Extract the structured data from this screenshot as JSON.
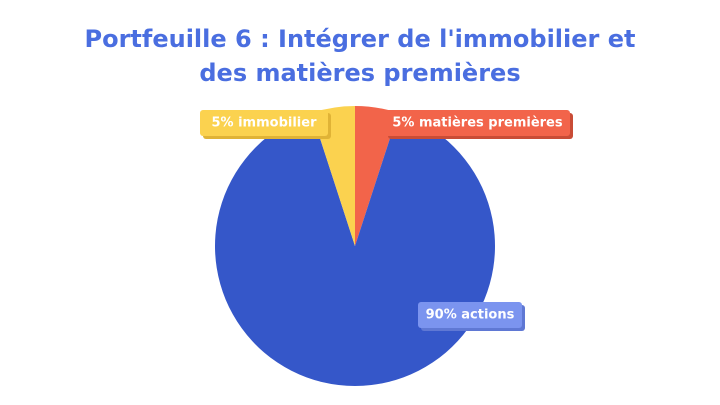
{
  "chart_data": {
    "type": "pie",
    "title": "Portfeuille 6 : Intégrer de l'immobilier et des matières premières",
    "values": [
      5,
      90,
      5
    ],
    "value_labels": [
      "5% matières premières",
      "90% actions",
      "5% immobilier"
    ],
    "colors": [
      "#f2644a",
      "#3557c9",
      "#fbd24f"
    ]
  }
}
